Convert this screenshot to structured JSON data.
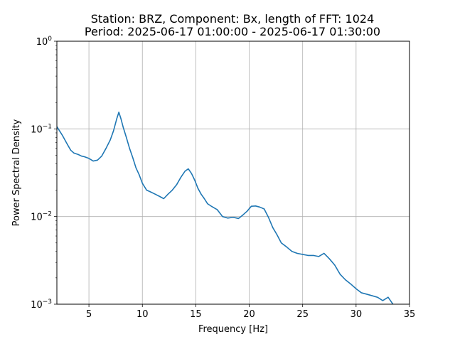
{
  "figure": {
    "title_line1": "Station: BRZ, Component: Bx, length of FFT: 1024",
    "title_line2": "Period: 2025-06-17 01:00:00 - 2025-06-17 01:30:00",
    "xlabel": "Frequency [Hz]",
    "ylabel": "Power Spectral Density",
    "line_color": "#1f77b4",
    "grid_color": "#b0b0b0"
  },
  "chart_data": {
    "type": "line",
    "title": "Station: BRZ, Component: Bx, length of FFT: 1024\nPeriod: 2025-06-17 01:00:00 - 2025-06-17 01:30:00",
    "xlabel": "Frequency [Hz]",
    "ylabel": "Power Spectral Density",
    "xlim": [
      2,
      35
    ],
    "ylim": [
      0.001,
      1
    ],
    "yscale": "log",
    "grid": true,
    "x_ticks": [
      5,
      10,
      15,
      20,
      25,
      30,
      35
    ],
    "x_tick_labels": [
      "5",
      "10",
      "15",
      "20",
      "25",
      "30",
      "35"
    ],
    "y_ticks": [
      0.001,
      0.01,
      0.1,
      1
    ],
    "y_tick_labels": [
      {
        "base": "10",
        "exp": "−3"
      },
      {
        "base": "10",
        "exp": "−2"
      },
      {
        "base": "10",
        "exp": "−1"
      },
      {
        "base": "10",
        "exp": "0"
      }
    ],
    "series": [
      {
        "x": [
          2.0,
          2.5,
          3.0,
          3.3,
          3.6,
          4.0,
          4.3,
          4.6,
          5.0,
          5.4,
          5.8,
          6.2,
          6.6,
          7.0,
          7.3,
          7.6,
          7.8,
          8.0,
          8.2,
          8.5,
          8.8,
          9.1,
          9.4,
          9.7,
          10.0,
          10.4,
          10.8,
          11.2,
          11.6,
          12.0,
          12.4,
          12.8,
          13.2,
          13.6,
          14.0,
          14.3,
          14.6,
          14.9,
          15.2,
          15.5,
          15.8,
          16.1,
          16.5,
          17.0,
          17.5,
          18.0,
          18.5,
          19.0,
          19.4,
          19.8,
          20.2,
          20.6,
          21.0,
          21.4,
          21.8,
          22.2,
          22.6,
          23.0,
          23.5,
          24.0,
          24.5,
          25.0,
          25.5,
          26.0,
          26.5,
          27.0,
          27.5,
          28.0,
          28.5,
          29.0,
          29.5,
          30.0,
          30.5,
          31.0,
          31.5,
          32.0,
          32.5,
          33.0,
          33.5
        ],
        "y": [
          0.106,
          0.085,
          0.066,
          0.057,
          0.053,
          0.051,
          0.049,
          0.048,
          0.046,
          0.043,
          0.044,
          0.049,
          0.06,
          0.075,
          0.095,
          0.13,
          0.155,
          0.13,
          0.105,
          0.08,
          0.06,
          0.047,
          0.036,
          0.03,
          0.024,
          0.02,
          0.019,
          0.018,
          0.017,
          0.016,
          0.018,
          0.02,
          0.023,
          0.028,
          0.033,
          0.035,
          0.031,
          0.026,
          0.021,
          0.018,
          0.016,
          0.014,
          0.013,
          0.012,
          0.01,
          0.0096,
          0.0098,
          0.0095,
          0.0104,
          0.0115,
          0.0131,
          0.0132,
          0.0128,
          0.0122,
          0.0098,
          0.0075,
          0.0062,
          0.005,
          0.0045,
          0.004,
          0.0038,
          0.0037,
          0.0036,
          0.0036,
          0.0035,
          0.0038,
          0.0033,
          0.0028,
          0.0022,
          0.0019,
          0.0017,
          0.0015,
          0.00135,
          0.0013,
          0.00125,
          0.0012,
          0.0011,
          0.0012,
          0.00098
        ]
      }
    ]
  }
}
